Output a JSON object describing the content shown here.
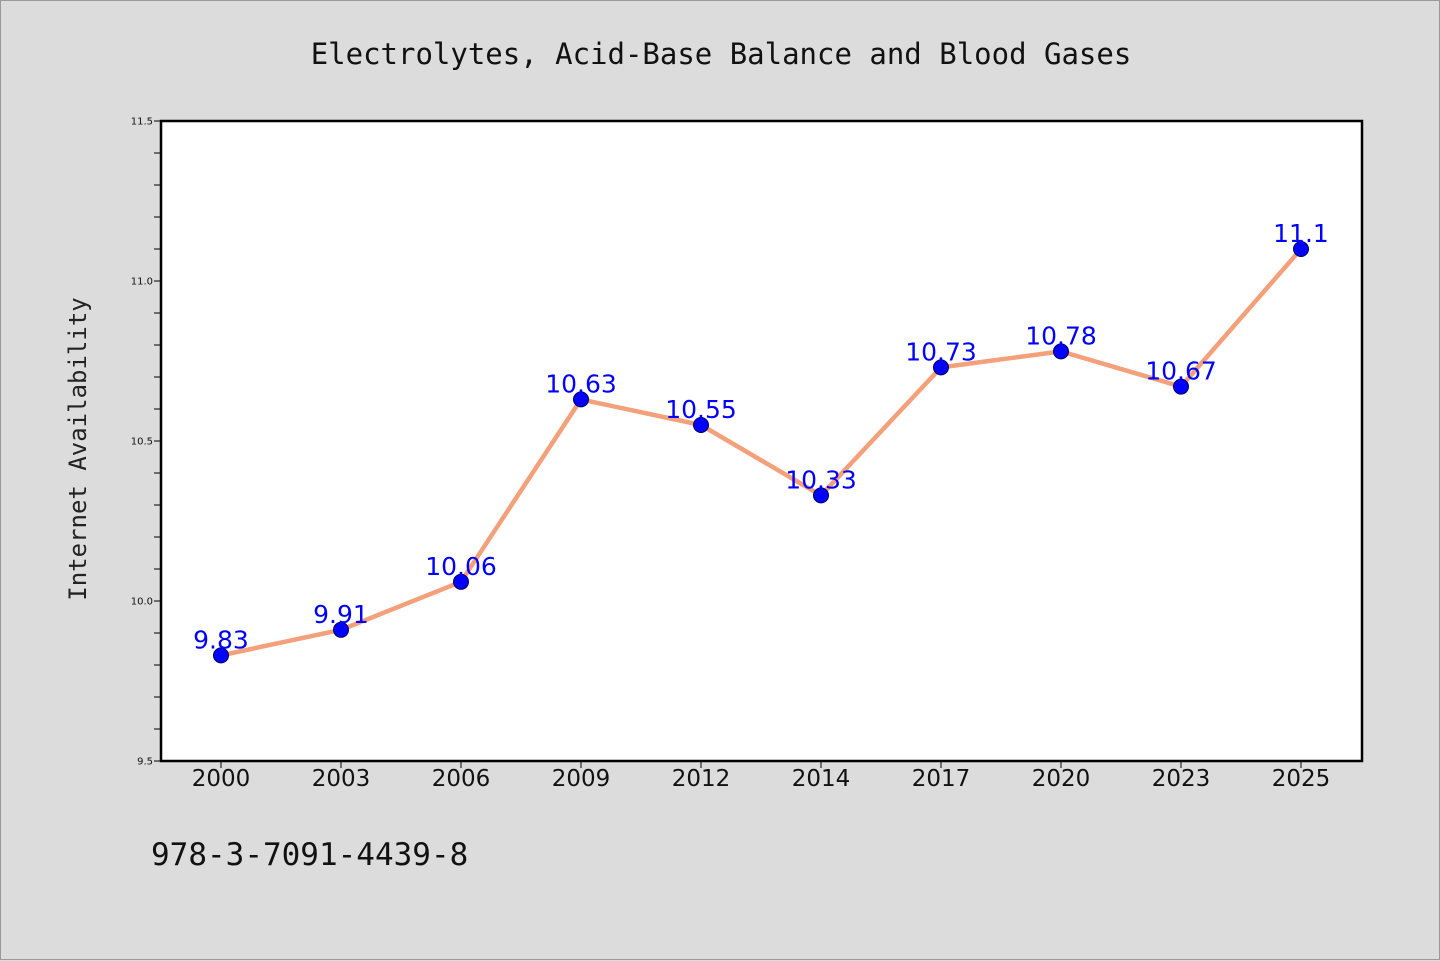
{
  "chart_data": {
    "type": "line",
    "title": "Electrolytes, Acid-Base Balance and Blood Gases",
    "xlabel": "",
    "ylabel": "Internet Availability",
    "categories": [
      "2000",
      "2003",
      "2006",
      "2009",
      "2012",
      "2014",
      "2017",
      "2020",
      "2023",
      "2025"
    ],
    "series": [
      {
        "values": [
          9.83,
          9.91,
          10.06,
          10.63,
          10.55,
          10.33,
          10.73,
          10.78,
          10.67,
          11.1
        ]
      }
    ],
    "data_labels": [
      "9.83",
      "9.91",
      "10.06",
      "10.63",
      "10.55",
      "10.33",
      "10.73",
      "10.78",
      "10.67",
      "11.1"
    ],
    "ylim": [
      9.5,
      11.5
    ],
    "yticks": [
      "9.5",
      "10.0",
      "10.5",
      "11.0",
      "11.5"
    ],
    "grid": false,
    "legend": "none",
    "colors": {
      "line": "#f4a07a",
      "marker": "#0000ff",
      "label": "#0000ff",
      "figure_bg": "#dcdcdc",
      "plot_bg": "#ffffff"
    }
  },
  "footer": {
    "isbn": "978-3-7091-4439-8"
  }
}
